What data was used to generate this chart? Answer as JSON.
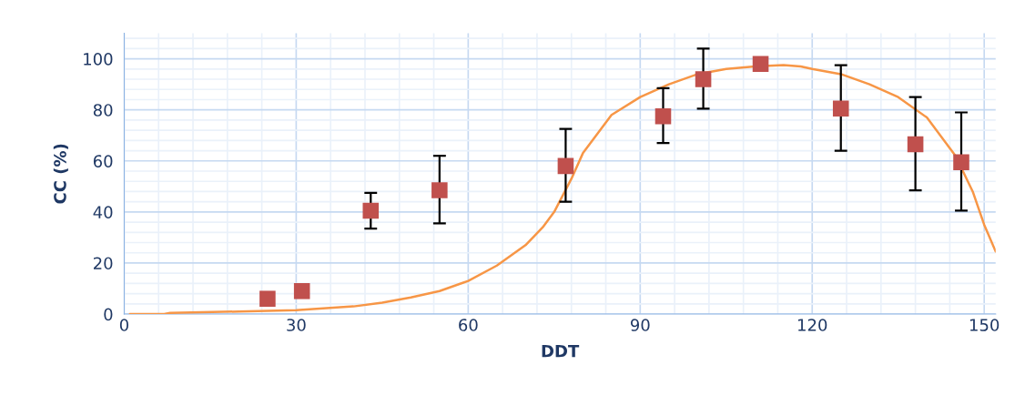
{
  "chart_data": {
    "type": "scatter",
    "xlabel": "DDT",
    "ylabel": "CC (%)",
    "xlim": [
      0,
      152
    ],
    "ylim": [
      0,
      110
    ],
    "xticks": [
      0,
      30,
      60,
      90,
      120,
      150
    ],
    "yticks": [
      0,
      20,
      40,
      60,
      80,
      100
    ],
    "grid": true,
    "legend": false,
    "series": [
      {
        "color": "#c0504d",
        "marker": "square",
        "x": [
          25,
          31,
          43,
          55,
          77,
          94,
          101,
          111,
          125,
          138,
          146
        ],
        "values": [
          6,
          9,
          40.5,
          48.5,
          58,
          77.5,
          92,
          98,
          80.5,
          66.5,
          59.5
        ],
        "errors": [
          null,
          null,
          [
            33.5,
            47.5
          ],
          [
            35.5,
            62
          ],
          [
            44,
            72.5
          ],
          [
            67,
            88.5
          ],
          [
            80.5,
            104
          ],
          null,
          [
            64,
            97.5
          ],
          [
            48.5,
            85
          ],
          [
            40.5,
            79
          ]
        ]
      },
      {
        "type": "line",
        "color": "#f79646",
        "marker": "none",
        "line_style": "solid",
        "x": [
          1,
          7,
          8,
          20,
          30,
          40,
          45,
          50,
          55,
          60,
          65,
          70,
          73,
          75,
          78,
          80,
          85,
          90,
          95,
          100,
          105,
          110,
          115,
          118,
          120,
          125,
          130,
          135,
          140,
          145,
          148,
          150,
          152
        ],
        "values": [
          0,
          0,
          0.5,
          1,
          1.5,
          3,
          4.5,
          6.5,
          9,
          13,
          19,
          27,
          34,
          40,
          53,
          63,
          78,
          85,
          90,
          94,
          96,
          97,
          97.5,
          97,
          96,
          94,
          90,
          85,
          77,
          62,
          48,
          35,
          24.5
        ]
      }
    ]
  }
}
